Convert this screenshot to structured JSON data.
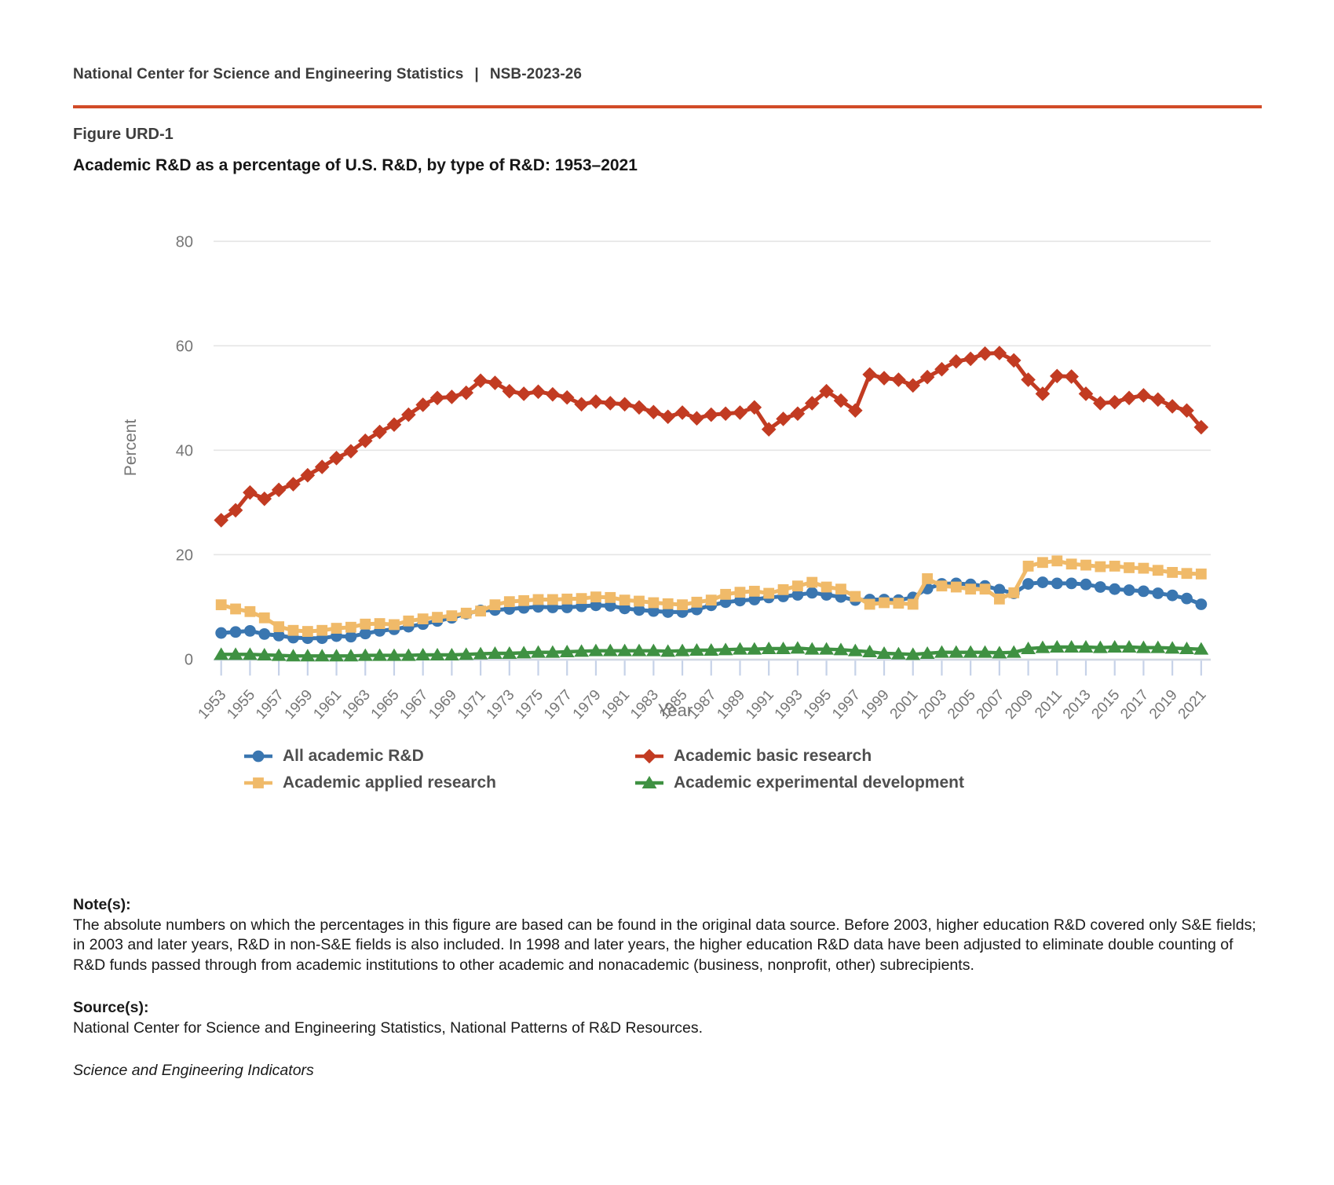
{
  "header": {
    "org": "National Center for Science and Engineering Statistics",
    "separator": "|",
    "report_id": "NSB-2023-26"
  },
  "figure": {
    "label": "Figure URD-1",
    "title": "Academic R&D as a percentage of U.S. R&D, by type of R&D: 1953–2021"
  },
  "chart_data": {
    "type": "line",
    "title": "Academic R&D as a percentage of U.S. R&D, by type of R&D: 1953–2021",
    "xlabel": "Year",
    "ylabel": "Percent",
    "ylim": [
      0,
      80
    ],
    "yticks": [
      0,
      20,
      40,
      60,
      80
    ],
    "grid": "horizontal",
    "legend_position": "bottom",
    "x": [
      1953,
      1954,
      1955,
      1956,
      1957,
      1958,
      1959,
      1960,
      1961,
      1962,
      1963,
      1964,
      1965,
      1966,
      1967,
      1968,
      1969,
      1970,
      1971,
      1972,
      1973,
      1974,
      1975,
      1976,
      1977,
      1978,
      1979,
      1980,
      1981,
      1982,
      1983,
      1984,
      1985,
      1986,
      1987,
      1988,
      1989,
      1990,
      1991,
      1992,
      1993,
      1994,
      1995,
      1996,
      1997,
      1998,
      1999,
      2000,
      2001,
      2002,
      2003,
      2004,
      2005,
      2006,
      2007,
      2008,
      2009,
      2010,
      2011,
      2012,
      2013,
      2014,
      2015,
      2016,
      2017,
      2018,
      2019,
      2020,
      2021
    ],
    "xtick_labels": [
      "1953",
      "1955",
      "1957",
      "1959",
      "1961",
      "1963",
      "1965",
      "1967",
      "1969",
      "1971",
      "1973",
      "1975",
      "1977",
      "1979",
      "1981",
      "1983",
      "1985",
      "1987",
      "1989",
      "1991",
      "1993",
      "1995",
      "1997",
      "1999",
      "2001",
      "2003",
      "2005",
      "2007",
      "2009",
      "2011",
      "2013",
      "2015",
      "2017",
      "2019",
      "2021"
    ],
    "series": [
      {
        "name": "All academic R&D",
        "color": "#3A76B0",
        "marker": "circle",
        "values": [
          5.0,
          5.2,
          5.4,
          4.8,
          4.5,
          4.1,
          4.0,
          4.0,
          4.4,
          4.3,
          4.9,
          5.4,
          5.7,
          6.2,
          6.7,
          7.3,
          7.9,
          8.7,
          9.3,
          9.4,
          9.6,
          9.8,
          10.0,
          9.9,
          9.9,
          10.1,
          10.3,
          10.2,
          9.7,
          9.4,
          9.2,
          9.0,
          9.0,
          9.5,
          10.3,
          10.9,
          11.2,
          11.4,
          11.8,
          12.0,
          12.3,
          12.7,
          12.3,
          11.9,
          11.3,
          11.4,
          11.4,
          11.3,
          11.8,
          13.5,
          14.4,
          14.5,
          14.3,
          14.0,
          13.3,
          12.6,
          14.4,
          14.7,
          14.5,
          14.5,
          14.3,
          13.8,
          13.4,
          13.2,
          13.0,
          12.6,
          12.2,
          11.6,
          10.5
        ]
      },
      {
        "name": "Academic basic research",
        "color": "#C23B22",
        "marker": "diamond",
        "values": [
          26.6,
          28.5,
          31.9,
          30.7,
          32.4,
          33.5,
          35.2,
          36.8,
          38.5,
          39.8,
          41.8,
          43.5,
          44.9,
          46.8,
          48.7,
          50.0,
          50.2,
          51.0,
          53.3,
          52.9,
          51.3,
          50.8,
          51.2,
          50.7,
          50.1,
          48.8,
          49.3,
          49.0,
          48.8,
          48.2,
          47.3,
          46.4,
          47.2,
          46.1,
          46.8,
          47.0,
          47.2,
          48.2,
          44.0,
          46.0,
          47.0,
          49.0,
          51.3,
          49.5,
          47.6,
          54.5,
          53.8,
          53.5,
          52.4,
          54.0,
          55.5,
          57.0,
          57.5,
          58.5,
          58.6,
          57.2,
          53.5,
          50.8,
          54.2,
          54.1,
          50.8,
          49.0,
          49.2,
          50.0,
          50.5,
          49.7,
          48.4,
          47.6,
          44.4
        ]
      },
      {
        "name": "Academic applied research",
        "color": "#F0BA69",
        "marker": "square",
        "values": [
          10.4,
          9.6,
          9.1,
          7.9,
          6.2,
          5.5,
          5.3,
          5.5,
          5.9,
          6.1,
          6.7,
          6.8,
          6.6,
          7.3,
          7.7,
          8.0,
          8.3,
          8.8,
          9.2,
          10.4,
          11.0,
          11.2,
          11.4,
          11.4,
          11.5,
          11.6,
          11.9,
          11.8,
          11.3,
          11.1,
          10.8,
          10.6,
          10.4,
          10.9,
          11.3,
          12.4,
          12.8,
          13.0,
          12.6,
          13.3,
          14.0,
          14.7,
          13.8,
          13.4,
          12.0,
          10.5,
          10.8,
          10.7,
          10.5,
          15.4,
          14.0,
          13.8,
          13.4,
          13.4,
          11.5,
          12.7,
          17.8,
          18.5,
          18.8,
          18.2,
          18.0,
          17.7,
          17.8,
          17.5,
          17.4,
          17.0,
          16.6,
          16.4,
          16.3
        ]
      },
      {
        "name": "Academic experimental development",
        "color": "#3F9142",
        "marker": "triangle",
        "values": [
          0.9,
          0.9,
          0.9,
          0.8,
          0.7,
          0.6,
          0.6,
          0.6,
          0.6,
          0.6,
          0.7,
          0.7,
          0.7,
          0.7,
          0.8,
          0.8,
          0.8,
          0.9,
          1.0,
          1.1,
          1.1,
          1.2,
          1.3,
          1.3,
          1.4,
          1.5,
          1.6,
          1.6,
          1.6,
          1.6,
          1.6,
          1.5,
          1.6,
          1.7,
          1.7,
          1.8,
          1.9,
          1.9,
          2.0,
          2.0,
          2.1,
          1.9,
          1.9,
          1.8,
          1.6,
          1.4,
          1.1,
          1.0,
          0.9,
          1.1,
          1.3,
          1.3,
          1.3,
          1.3,
          1.2,
          1.3,
          2.0,
          2.2,
          2.3,
          2.3,
          2.3,
          2.2,
          2.3,
          2.3,
          2.2,
          2.2,
          2.1,
          2.0,
          1.9
        ]
      }
    ]
  },
  "notes": {
    "heading": "Note(s):",
    "text": "The absolute numbers on which the percentages in this figure are based can be found in the original data source. Before 2003, higher education R&D covered only S&E fields; in 2003 and later years, R&D in non-S&E fields is also included. In 1998 and later years, the higher education R&D data have been adjusted to eliminate double counting of R&D funds passed through from academic institutions to other academic and nonacademic (business, nonprofit, other) subrecipients."
  },
  "source": {
    "heading": "Source(s):",
    "text": "National Center for Science and Engineering Statistics, National Patterns of R&D Resources."
  },
  "footer_italic": "Science and Engineering Indicators",
  "colors": {
    "divider": "#D14B27",
    "axis_text": "#767676",
    "gridline": "#E5E5E5",
    "tick": "#C6D2E8",
    "legend_text": "#4E4E4E"
  }
}
